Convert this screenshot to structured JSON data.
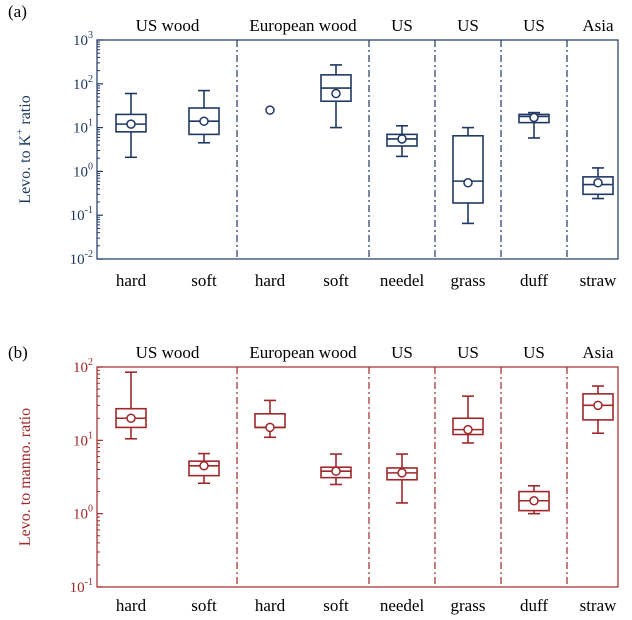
{
  "chart_data": [
    {
      "type": "box",
      "panel_label": "(a)",
      "ylabel": "Levo. to K⁺ ratio",
      "ylabel_main": "Levo. to K",
      "ylabel_sup": "+",
      "ylabel_rest": " ratio",
      "yscale": "log",
      "ylim": [
        0.01,
        1000
      ],
      "yticks": [
        0.01,
        0.1,
        1,
        10,
        100,
        1000
      ],
      "ytick_labels": [
        {
          "base": "10",
          "exp": "-2"
        },
        {
          "base": "10",
          "exp": "-1"
        },
        {
          "base": "10",
          "exp": "0"
        },
        {
          "base": "10",
          "exp": "1"
        },
        {
          "base": "10",
          "exp": "2"
        },
        {
          "base": "10",
          "exp": "3"
        }
      ],
      "color": "#1f3864",
      "groups": [
        {
          "label": "US wood",
          "span": [
            0,
            1
          ]
        },
        {
          "label": "European wood",
          "span": [
            2,
            3
          ]
        },
        {
          "label": "US",
          "span": [
            4,
            4
          ]
        },
        {
          "label": "US",
          "span": [
            5,
            5
          ]
        },
        {
          "label": "US",
          "span": [
            6,
            6
          ]
        },
        {
          "label": "Asia",
          "span": [
            7,
            7
          ]
        }
      ],
      "categories": [
        "hard",
        "soft",
        "hard",
        "soft",
        "needel",
        "grass",
        "duff",
        "straw"
      ],
      "boxes": [
        {
          "category": "hard",
          "whisker_low": 2.1,
          "q1": 8,
          "median": 12,
          "q3": 20,
          "whisker_high": 60,
          "mean": 12
        },
        {
          "category": "soft",
          "whisker_low": 4.5,
          "q1": 7,
          "median": 14,
          "q3": 28,
          "whisker_high": 70,
          "mean": 14
        },
        {
          "category": "hard",
          "whisker_low": null,
          "q1": null,
          "median": null,
          "q3": null,
          "whisker_high": null,
          "mean": 25
        },
        {
          "category": "soft",
          "whisker_low": 10,
          "q1": 40,
          "median": 80,
          "q3": 160,
          "whisker_high": 270,
          "mean": 60
        },
        {
          "category": "needel",
          "whisker_low": 2.2,
          "q1": 3.8,
          "median": 5.5,
          "q3": 7,
          "whisker_high": 11,
          "mean": 5.5
        },
        {
          "category": "grass",
          "whisker_low": 0.065,
          "q1": 0.19,
          "median": 0.6,
          "q3": 6.5,
          "whisker_high": 10,
          "mean": 0.55
        },
        {
          "category": "duff",
          "whisker_low": 5.8,
          "q1": 13,
          "median": 18,
          "q3": 20,
          "whisker_high": 22,
          "mean": 17
        },
        {
          "category": "straw",
          "whisker_low": 0.24,
          "q1": 0.3,
          "median": 0.5,
          "q3": 0.75,
          "whisker_high": 1.2,
          "mean": 0.55
        }
      ]
    },
    {
      "type": "box",
      "panel_label": "(b)",
      "ylabel": "Levo. to manno. ratio",
      "yscale": "log",
      "ylim": [
        0.1,
        100
      ],
      "yticks": [
        0.1,
        1,
        10,
        100
      ],
      "ytick_labels": [
        {
          "base": "10",
          "exp": "-1"
        },
        {
          "base": "10",
          "exp": "0"
        },
        {
          "base": "10",
          "exp": "1"
        },
        {
          "base": "10",
          "exp": "2"
        }
      ],
      "color": "#a0282a",
      "groups": [
        {
          "label": "US wood",
          "span": [
            0,
            1
          ]
        },
        {
          "label": "European wood",
          "span": [
            2,
            3
          ]
        },
        {
          "label": "US",
          "span": [
            4,
            4
          ]
        },
        {
          "label": "US",
          "span": [
            5,
            5
          ]
        },
        {
          "label": "US",
          "span": [
            6,
            6
          ]
        },
        {
          "label": "Asia",
          "span": [
            7,
            7
          ]
        }
      ],
      "categories": [
        "hard",
        "soft",
        "hard",
        "soft",
        "needel",
        "grass",
        "duff",
        "straw"
      ],
      "boxes": [
        {
          "category": "hard",
          "whisker_low": 10.5,
          "q1": 15,
          "median": 20,
          "q3": 27,
          "whisker_high": 85,
          "mean": 20
        },
        {
          "category": "soft",
          "whisker_low": 2.6,
          "q1": 3.3,
          "median": 4.5,
          "q3": 5.2,
          "whisker_high": 6.6,
          "mean": 4.5
        },
        {
          "category": "hard",
          "whisker_low": 11,
          "q1": 15,
          "median": 15,
          "q3": 23,
          "whisker_high": 35,
          "mean": 15
        },
        {
          "category": "soft",
          "whisker_low": 2.5,
          "q1": 3.1,
          "median": 3.8,
          "q3": 4.3,
          "whisker_high": 6.5,
          "mean": 3.8
        },
        {
          "category": "needel",
          "whisker_low": 1.4,
          "q1": 2.9,
          "median": 3.6,
          "q3": 4.2,
          "whisker_high": 6.5,
          "mean": 3.6
        },
        {
          "category": "grass",
          "whisker_low": 9.2,
          "q1": 12,
          "median": 14,
          "q3": 20,
          "whisker_high": 40,
          "mean": 14
        },
        {
          "category": "duff",
          "whisker_low": 1.0,
          "q1": 1.1,
          "median": 1.5,
          "q3": 2.0,
          "whisker_high": 2.4,
          "mean": 1.5
        },
        {
          "category": "straw",
          "whisker_low": 12.5,
          "q1": 19,
          "median": 30,
          "q3": 43,
          "whisker_high": 55,
          "mean": 30
        }
      ]
    }
  ]
}
